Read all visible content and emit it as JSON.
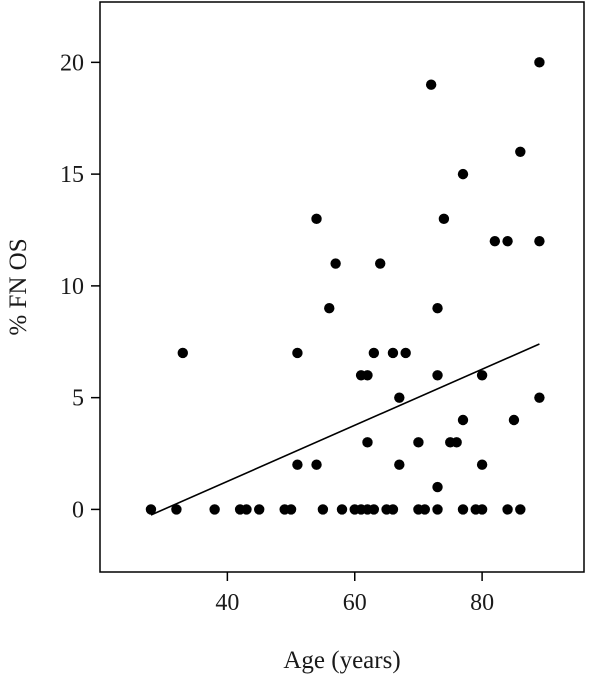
{
  "chart_data": {
    "type": "scatter",
    "title": "",
    "xlabel": "Age (years)",
    "ylabel": "% FN OS",
    "xlim": [
      20,
      96
    ],
    "ylim": [
      -2.8,
      22.7
    ],
    "x_ticks": [
      40,
      60,
      80
    ],
    "y_ticks": [
      0,
      5,
      10,
      15,
      20
    ],
    "x_tick_labels": [
      "40",
      "60",
      "80"
    ],
    "y_tick_labels": [
      "0",
      "5",
      "10",
      "15",
      "20"
    ],
    "grid": false,
    "legend": "none",
    "marker_color": "#000000",
    "series": [
      {
        "points": [
          {
            "x": 28,
            "y": 0
          },
          {
            "x": 32,
            "y": 0
          },
          {
            "x": 33,
            "y": 7
          },
          {
            "x": 38,
            "y": 0
          },
          {
            "x": 42,
            "y": 0
          },
          {
            "x": 43,
            "y": 0
          },
          {
            "x": 45,
            "y": 0
          },
          {
            "x": 49,
            "y": 0
          },
          {
            "x": 50,
            "y": 0
          },
          {
            "x": 51,
            "y": 7
          },
          {
            "x": 51,
            "y": 2
          },
          {
            "x": 54,
            "y": 13
          },
          {
            "x": 54,
            "y": 2
          },
          {
            "x": 55,
            "y": 0
          },
          {
            "x": 56,
            "y": 9
          },
          {
            "x": 57,
            "y": 11
          },
          {
            "x": 58,
            "y": 0
          },
          {
            "x": 60,
            "y": 0
          },
          {
            "x": 61,
            "y": 6
          },
          {
            "x": 61,
            "y": 0
          },
          {
            "x": 62,
            "y": 6
          },
          {
            "x": 62,
            "y": 3
          },
          {
            "x": 62,
            "y": 0
          },
          {
            "x": 63,
            "y": 7
          },
          {
            "x": 63,
            "y": 0
          },
          {
            "x": 64,
            "y": 11
          },
          {
            "x": 65,
            "y": 0
          },
          {
            "x": 66,
            "y": 7
          },
          {
            "x": 66,
            "y": 0
          },
          {
            "x": 67,
            "y": 5
          },
          {
            "x": 67,
            "y": 2
          },
          {
            "x": 68,
            "y": 7
          },
          {
            "x": 70,
            "y": 3
          },
          {
            "x": 70,
            "y": 0
          },
          {
            "x": 71,
            "y": 0
          },
          {
            "x": 72,
            "y": 19
          },
          {
            "x": 73,
            "y": 9
          },
          {
            "x": 73,
            "y": 6
          },
          {
            "x": 73,
            "y": 1
          },
          {
            "x": 73,
            "y": 0
          },
          {
            "x": 74,
            "y": 13
          },
          {
            "x": 75,
            "y": 3
          },
          {
            "x": 76,
            "y": 3
          },
          {
            "x": 77,
            "y": 15
          },
          {
            "x": 77,
            "y": 4
          },
          {
            "x": 77,
            "y": 0
          },
          {
            "x": 79,
            "y": 0
          },
          {
            "x": 80,
            "y": 6
          },
          {
            "x": 80,
            "y": 2
          },
          {
            "x": 80,
            "y": 0
          },
          {
            "x": 82,
            "y": 12
          },
          {
            "x": 84,
            "y": 12
          },
          {
            "x": 84,
            "y": 0
          },
          {
            "x": 85,
            "y": 4
          },
          {
            "x": 86,
            "y": 16
          },
          {
            "x": 86,
            "y": 0
          },
          {
            "x": 89,
            "y": 20
          },
          {
            "x": 89,
            "y": 12
          },
          {
            "x": 89,
            "y": 5
          }
        ]
      }
    ],
    "trend_line": {
      "x": [
        28,
        89
      ],
      "y": [
        -0.25,
        7.4
      ]
    }
  }
}
